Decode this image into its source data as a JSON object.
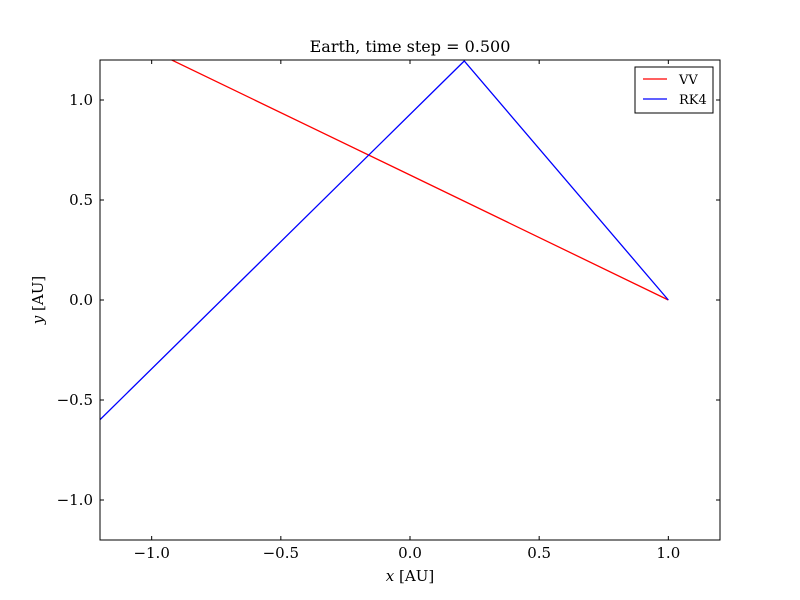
{
  "chart_data": {
    "type": "line",
    "title": "Earth, time step = 0.500",
    "xlabel_var": "x",
    "xlabel_unit": " [AU]",
    "ylabel_var": "y",
    "ylabel_unit": " [AU]",
    "xlim": [
      -1.2,
      1.2
    ],
    "ylim": [
      -1.2,
      1.2
    ],
    "xticks": [
      -1.0,
      -0.5,
      0.0,
      0.5,
      1.0
    ],
    "xtick_labels": [
      "−1.0",
      "−0.5",
      "0.0",
      "0.5",
      "1.0"
    ],
    "yticks": [
      -1.0,
      -0.5,
      0.0,
      0.5,
      1.0
    ],
    "ytick_labels": [
      "−1.0",
      "−0.5",
      "0.0",
      "0.5",
      "1.0"
    ],
    "grid": false,
    "legend_position": "top-right",
    "series": [
      {
        "name": "VV",
        "color": "#ff0000",
        "x": [
          1.0,
          0.0,
          -1.5
        ],
        "y": [
          0.0,
          0.625,
          1.56
        ]
      },
      {
        "name": "RK4",
        "color": "#0000ff",
        "x": [
          1.0,
          0.21,
          -1.5
        ],
        "y": [
          0.0,
          1.195,
          -0.98
        ]
      }
    ]
  }
}
